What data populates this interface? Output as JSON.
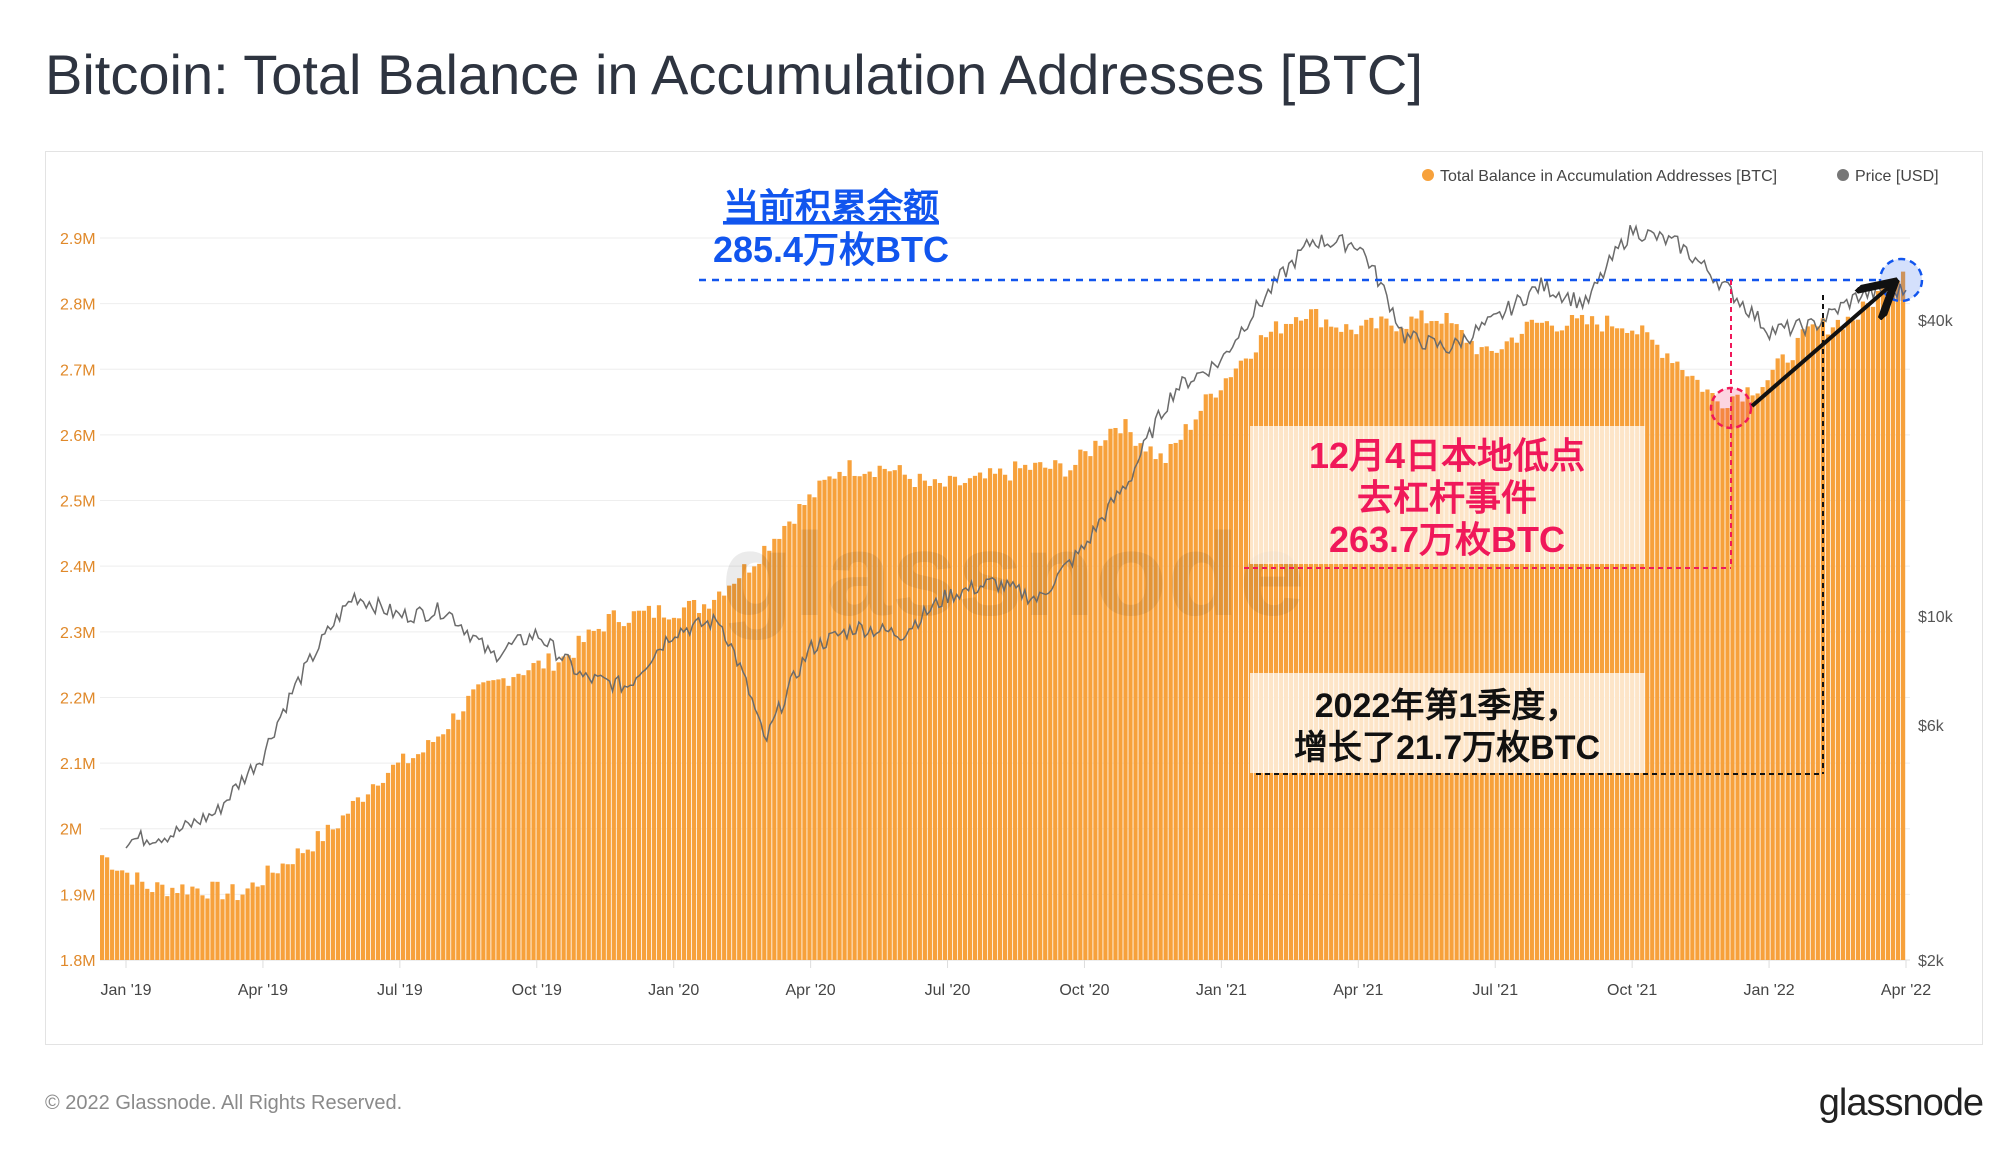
{
  "title": "Bitcoin: Total Balance in Accumulation Addresses [BTC]",
  "footer": "© 2022 Glassnode. All Rights Reserved.",
  "logo": "glassnode",
  "watermark": "glassnode",
  "colors": {
    "bar": "#f7a13b",
    "price": "#6b6b6b",
    "blue": "#1155ee",
    "pink": "#f0185a",
    "black": "#111111"
  },
  "annotations": {
    "current": {
      "line1": "当前积累余额",
      "line2": "285.4万枚BTC",
      "value_m": 2.854
    },
    "low": {
      "line1": "12月4日本地低点",
      "line2": "去杠杆事件",
      "line3": "263.7万枚BTC",
      "value_m": 2.637
    },
    "quarter": {
      "line1": "2022年第1季度，",
      "line2": "增长了21.7万枚BTC"
    }
  },
  "chart_data": {
    "type": "bar",
    "title": "Bitcoin: Total Balance in Accumulation Addresses [BTC]",
    "legend": {
      "placement": "top-right",
      "items": [
        "Total Balance in Accumulation Addresses [BTC]",
        "Price [USD]"
      ]
    },
    "x_ticks": [
      "Jan '19",
      "Apr '19",
      "Jul '19",
      "Oct '19",
      "Jan '20",
      "Apr '20",
      "Jul '20",
      "Oct '20",
      "Jan '21",
      "Apr '21",
      "Jul '21",
      "Oct '21",
      "Jan '22",
      "Apr '22"
    ],
    "y_left": {
      "label": "",
      "ticks": [
        "1.8M",
        "1.9M",
        "2M",
        "2.1M",
        "2.2M",
        "2.3M",
        "2.4M",
        "2.5M",
        "2.6M",
        "2.7M",
        "2.8M",
        "2.9M"
      ],
      "range_m": [
        1.8,
        2.9
      ]
    },
    "y_right": {
      "label": "",
      "scale": "log",
      "ticks": [
        "$2k",
        "$6k",
        "$10k",
        "$40k"
      ],
      "tick_values_k": [
        2,
        6,
        10,
        40
      ]
    },
    "months": [
      "2019-01",
      "2019-02",
      "2019-03",
      "2019-04",
      "2019-05",
      "2019-06",
      "2019-07",
      "2019-08",
      "2019-09",
      "2019-10",
      "2019-11",
      "2019-12",
      "2020-01",
      "2020-02",
      "2020-03",
      "2020-04",
      "2020-05",
      "2020-06",
      "2020-07",
      "2020-08",
      "2020-09",
      "2020-10",
      "2020-11",
      "2020-12",
      "2021-01",
      "2021-02",
      "2021-03",
      "2021-04",
      "2021-05",
      "2021-06",
      "2021-07",
      "2021-08",
      "2021-09",
      "2021-10",
      "2021-11",
      "2021-12",
      "2022-01",
      "2022-02",
      "2022-03",
      "2022-04"
    ],
    "series": [
      {
        "name": "Total Balance in Accumulation Addresses [BTC]",
        "unit": "M BTC",
        "values": [
          1.96,
          1.91,
          1.91,
          1.9,
          1.95,
          2.0,
          2.08,
          2.12,
          2.2,
          2.24,
          2.26,
          2.32,
          2.33,
          2.34,
          2.4,
          2.48,
          2.55,
          2.55,
          2.52,
          2.53,
          2.55,
          2.55,
          2.62,
          2.56,
          2.66,
          2.74,
          2.79,
          2.76,
          2.77,
          2.78,
          2.72,
          2.77,
          2.77,
          2.77,
          2.72,
          2.65,
          2.68,
          2.76,
          2.78,
          2.854
        ]
      },
      {
        "name": "Price [USD]",
        "unit": "k USD",
        "values": [
          3.5,
          3.6,
          4.0,
          5.2,
          8.0,
          11,
          10,
          10.3,
          8.3,
          9.2,
          7.5,
          7.2,
          9.3,
          9.8,
          5.5,
          8.6,
          9.5,
          9.2,
          11,
          11.7,
          10.8,
          13.8,
          19,
          29,
          33,
          45,
          58,
          57,
          37,
          35,
          40,
          47,
          43,
          61,
          57,
          47,
          38,
          39,
          45,
          46
        ]
      }
    ]
  }
}
